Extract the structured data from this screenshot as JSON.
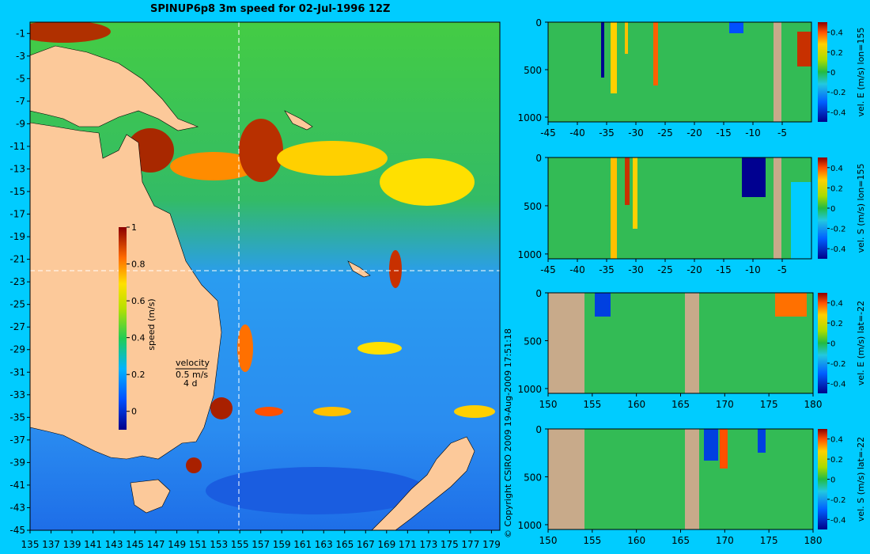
{
  "title": "SPINUP6p8 3m speed for 02-Jul-1996 12Z",
  "copyright": "© Copyright CSIRO 2009   19-Aug-2009 17:51:18",
  "colors": {
    "background": "#00ccff",
    "land": "#fcc99a",
    "section_land": "#c8aa8a"
  },
  "chart_data": [
    {
      "type": "heatmap",
      "name": "map",
      "title": "SPINUP6p8 3m speed for 02-Jul-1996 12Z",
      "x_ticks": [
        135,
        137,
        139,
        141,
        143,
        145,
        147,
        149,
        151,
        153,
        155,
        157,
        159,
        161,
        163,
        165,
        167,
        169,
        171,
        173,
        175,
        177,
        179
      ],
      "y_ticks": [
        -1,
        -3,
        -5,
        -7,
        -9,
        -11,
        -13,
        -15,
        -17,
        -19,
        -21,
        -23,
        -25,
        -27,
        -29,
        -31,
        -33,
        -35,
        -37,
        -39,
        -41,
        -43,
        -45
      ],
      "xlim": [
        135,
        179.8
      ],
      "ylim": [
        -45,
        0
      ],
      "crosshair": {
        "lon": 155,
        "lat": -22
      },
      "colorbar": {
        "label": "speed (m/s)",
        "ticks": [
          "1",
          "0.8",
          "0.6",
          "0.4",
          "0.2",
          "0"
        ],
        "range": [
          -0.1,
          1
        ]
      },
      "velocity_legend": {
        "label": "velocity",
        "speed": "0.5 m/s",
        "duration": "4 d"
      }
    },
    {
      "type": "heatmap",
      "name": "section-1",
      "x_ticks": [
        -45,
        -40,
        -35,
        -30,
        -25,
        -20,
        -15,
        -10,
        -5
      ],
      "y_ticks": [
        0,
        500,
        1000
      ],
      "xlim": [
        -45,
        0
      ],
      "ylim": [
        1050,
        0
      ],
      "colorbar": {
        "label": "vel. E (m/s) lon=155",
        "ticks": [
          "0.4",
          "0.2",
          "0",
          "-0.2",
          "-0.4"
        ]
      }
    },
    {
      "type": "heatmap",
      "name": "section-2",
      "x_ticks": [
        -45,
        -40,
        -35,
        -30,
        -25,
        -20,
        -15,
        -10,
        -5
      ],
      "y_ticks": [
        0,
        500,
        1000
      ],
      "xlim": [
        -45,
        0
      ],
      "ylim": [
        1050,
        0
      ],
      "colorbar": {
        "label": "vel. S (m/s) lon=155",
        "ticks": [
          "0.4",
          "0.2",
          "0",
          "-0.2",
          "-0.4"
        ]
      }
    },
    {
      "type": "heatmap",
      "name": "section-3",
      "x_ticks": [
        150,
        155,
        160,
        165,
        170,
        175,
        180
      ],
      "y_ticks": [
        0,
        500,
        1000
      ],
      "xlim": [
        150,
        180
      ],
      "ylim": [
        1050,
        0
      ],
      "colorbar": {
        "label": "vel. E (m/s) lat=-22",
        "ticks": [
          "0.4",
          "0.2",
          "0",
          "-0.2",
          "-0.4"
        ]
      }
    },
    {
      "type": "heatmap",
      "name": "section-4",
      "x_ticks": [
        150,
        155,
        160,
        165,
        170,
        175,
        180
      ],
      "y_ticks": [
        0,
        500,
        1000
      ],
      "xlim": [
        150,
        180
      ],
      "ylim": [
        1050,
        0
      ],
      "colorbar": {
        "label": "vel. S (m/s) lat=-22",
        "ticks": [
          "0.4",
          "0.2",
          "0",
          "-0.2",
          "-0.4"
        ]
      }
    }
  ]
}
